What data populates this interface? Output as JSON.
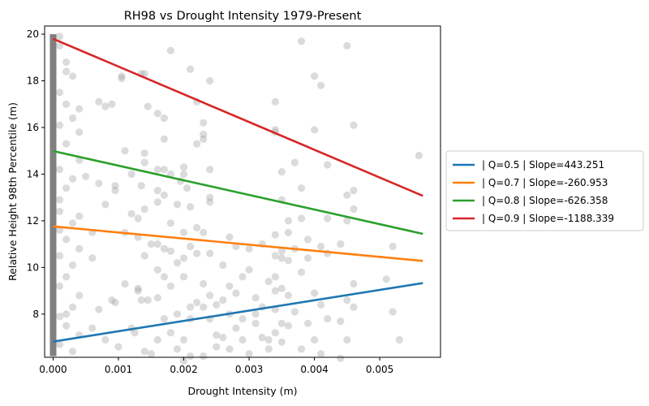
{
  "chart_data": {
    "type": "scatter",
    "title": "RH98 vs Drought Intensity 1979-Present",
    "xlabel": "Drought Intensity (m)",
    "ylabel": "Relative Height 98th Percentile (m)",
    "xlim": [
      -0.00013,
      0.00593
    ],
    "ylim": [
      6.15,
      20.35
    ],
    "xticks": [
      0.0,
      0.001,
      0.002,
      0.003,
      0.004,
      0.005
    ],
    "xtick_labels": [
      "0.000",
      "0.001",
      "0.002",
      "0.003",
      "0.004",
      "0.005"
    ],
    "yticks": [
      8,
      10,
      12,
      14,
      16,
      18,
      20
    ],
    "ytick_labels": [
      "8",
      "10",
      "12",
      "14",
      "16",
      "18",
      "20"
    ],
    "grid": false,
    "legend_position": "outside right",
    "scatter_color": "#a0a0a0",
    "zero_band": {
      "x": 0.0,
      "y_range": [
        6.2,
        20.0
      ],
      "color": "#808080"
    },
    "scatter_points": [
      [
        0.0001,
        19.9
      ],
      [
        0.0001,
        19.5
      ],
      [
        0.0002,
        18.8
      ],
      [
        0.0003,
        18.2
      ],
      [
        0.0001,
        17.5
      ],
      [
        0.0002,
        17.0
      ],
      [
        0.0004,
        16.8
      ],
      [
        0.0003,
        16.4
      ],
      [
        0.0001,
        16.1
      ],
      [
        0.0002,
        15.3
      ],
      [
        0.0004,
        14.6
      ],
      [
        0.0001,
        14.2
      ],
      [
        0.0003,
        13.8
      ],
      [
        0.0002,
        13.4
      ],
      [
        0.0001,
        12.9
      ],
      [
        0.0004,
        12.2
      ],
      [
        0.0003,
        11.9
      ],
      [
        0.0001,
        11.6
      ],
      [
        0.0002,
        11.2
      ],
      [
        0.0004,
        10.8
      ],
      [
        0.0001,
        10.5
      ],
      [
        0.0003,
        10.1
      ],
      [
        0.0002,
        9.6
      ],
      [
        0.0001,
        9.2
      ],
      [
        0.0004,
        8.8
      ],
      [
        0.0003,
        8.3
      ],
      [
        0.0001,
        7.9
      ],
      [
        0.0002,
        7.5
      ],
      [
        0.0004,
        7.1
      ],
      [
        0.0001,
        6.7
      ],
      [
        0.0003,
        6.4
      ],
      [
        0.0002,
        8.0
      ],
      [
        0.0001,
        12.4
      ],
      [
        0.0004,
        15.8
      ],
      [
        0.0002,
        18.4
      ],
      [
        0.0007,
        17.1
      ],
      [
        0.0008,
        16.9
      ],
      [
        0.0009,
        17.0
      ],
      [
        0.0007,
        13.6
      ],
      [
        0.0008,
        12.7
      ],
      [
        0.0006,
        10.4
      ],
      [
        0.0009,
        8.6
      ],
      [
        0.0006,
        7.4
      ],
      [
        0.0008,
        6.9
      ],
      [
        0.0007,
        8.2
      ],
      [
        0.0005,
        13.9
      ],
      [
        0.0006,
        11.5
      ],
      [
        0.00105,
        18.2
      ],
      [
        0.00105,
        18.1
      ],
      [
        0.0011,
        15.0
      ],
      [
        0.0012,
        14.0
      ],
      [
        0.0011,
        11.5
      ],
      [
        0.00095,
        13.5
      ],
      [
        0.00095,
        13.3
      ],
      [
        0.0012,
        12.3
      ],
      [
        0.0013,
        11.3
      ],
      [
        0.0011,
        9.3
      ],
      [
        0.00095,
        8.5
      ],
      [
        0.0012,
        7.4
      ],
      [
        0.0013,
        9.0
      ],
      [
        0.001,
        6.6
      ],
      [
        0.0014,
        6.4
      ],
      [
        0.00135,
        18.3
      ],
      [
        0.0014,
        18.3
      ],
      [
        0.00145,
        16.9
      ],
      [
        0.0014,
        14.9
      ],
      [
        0.0014,
        14.5
      ],
      [
        0.00135,
        13.5
      ],
      [
        0.0014,
        12.5
      ],
      [
        0.0013,
        12.1
      ],
      [
        0.0015,
        11.0
      ],
      [
        0.0014,
        10.5
      ],
      [
        0.00145,
        8.6
      ],
      [
        0.00135,
        8.6
      ],
      [
        0.00125,
        7.2
      ],
      [
        0.0015,
        6.3
      ],
      [
        0.0013,
        9.1
      ],
      [
        0.0016,
        16.6
      ],
      [
        0.0017,
        16.4
      ],
      [
        0.0017,
        15.5
      ],
      [
        0.0016,
        14.2
      ],
      [
        0.0017,
        14.2
      ],
      [
        0.0018,
        14.0
      ],
      [
        0.0016,
        13.3
      ],
      [
        0.0016,
        12.8
      ],
      [
        0.0019,
        12.7
      ],
      [
        0.0018,
        11.9
      ],
      [
        0.0016,
        11.0
      ],
      [
        0.0017,
        10.8
      ],
      [
        0.0018,
        10.7
      ],
      [
        0.0019,
        10.2
      ],
      [
        0.0016,
        9.9
      ],
      [
        0.0017,
        9.6
      ],
      [
        0.0018,
        9.2
      ],
      [
        0.0016,
        8.7
      ],
      [
        0.0019,
        8.0
      ],
      [
        0.0017,
        7.8
      ],
      [
        0.0018,
        7.2
      ],
      [
        0.0016,
        6.9
      ],
      [
        0.0019,
        6.5
      ],
      [
        0.0018,
        19.3
      ],
      [
        0.0017,
        13.1
      ],
      [
        0.002,
        14.3
      ],
      [
        0.002,
        14.0
      ],
      [
        0.0021,
        12.6
      ],
      [
        0.002,
        11.5
      ],
      [
        0.0021,
        10.9
      ],
      [
        0.002,
        10.4
      ],
      [
        0.002,
        9.6
      ],
      [
        0.0021,
        8.3
      ],
      [
        0.0021,
        7.8
      ],
      [
        0.002,
        6.9
      ],
      [
        0.0021,
        18.5
      ],
      [
        0.0022,
        17.1
      ],
      [
        0.0022,
        15.3
      ],
      [
        0.00195,
        13.7
      ],
      [
        0.00205,
        13.4
      ],
      [
        0.0022,
        11.7
      ],
      [
        0.0022,
        10.6
      ],
      [
        0.0021,
        6.2
      ],
      [
        0.002,
        6.0
      ],
      [
        0.0024,
        18.0
      ],
      [
        0.0023,
        16.2
      ],
      [
        0.0023,
        15.7
      ],
      [
        0.0023,
        15.5
      ],
      [
        0.0024,
        14.2
      ],
      [
        0.0024,
        13.0
      ],
      [
        0.0024,
        12.8
      ],
      [
        0.0023,
        11.5
      ],
      [
        0.0024,
        10.6
      ],
      [
        0.0023,
        9.3
      ],
      [
        0.0024,
        8.8
      ],
      [
        0.0023,
        8.3
      ],
      [
        0.0025,
        8.4
      ],
      [
        0.0024,
        7.8
      ],
      [
        0.0025,
        7.1
      ],
      [
        0.0025,
        6.6
      ],
      [
        0.0023,
        6.2
      ],
      [
        0.0022,
        8.5
      ],
      [
        0.0027,
        11.3
      ],
      [
        0.0026,
        10.1
      ],
      [
        0.0028,
        10.9
      ],
      [
        0.0027,
        9.2
      ],
      [
        0.0026,
        8.6
      ],
      [
        0.0028,
        8.9
      ],
      [
        0.0027,
        8.0
      ],
      [
        0.0029,
        7.8
      ],
      [
        0.0028,
        7.4
      ],
      [
        0.0026,
        7.0
      ],
      [
        0.0027,
        6.5
      ],
      [
        0.0029,
        6.9
      ],
      [
        0.003,
        6.3
      ],
      [
        0.0029,
        9.6
      ],
      [
        0.003,
        9.9
      ],
      [
        0.0031,
        8.7
      ],
      [
        0.0032,
        8.3
      ],
      [
        0.0031,
        7.6
      ],
      [
        0.0032,
        7.0
      ],
      [
        0.0033,
        6.5
      ],
      [
        0.003,
        10.8
      ],
      [
        0.0032,
        11.0
      ],
      [
        0.0031,
        8.0
      ],
      [
        0.0033,
        9.4
      ],
      [
        0.0033,
        6.9
      ],
      [
        0.0034,
        17.1
      ],
      [
        0.0034,
        15.9
      ],
      [
        0.0034,
        15.8
      ],
      [
        0.0035,
        14.1
      ],
      [
        0.0035,
        12.9
      ],
      [
        0.0036,
        11.5
      ],
      [
        0.0034,
        11.4
      ],
      [
        0.0035,
        10.7
      ],
      [
        0.0034,
        10.5
      ],
      [
        0.0035,
        10.4
      ],
      [
        0.0036,
        10.3
      ],
      [
        0.0034,
        9.6
      ],
      [
        0.0035,
        9.1
      ],
      [
        0.0034,
        9.0
      ],
      [
        0.0036,
        8.8
      ],
      [
        0.0035,
        7.6
      ],
      [
        0.0034,
        7.2
      ],
      [
        0.0035,
        6.8
      ],
      [
        0.0036,
        7.5
      ],
      [
        0.0034,
        8.2
      ],
      [
        0.0038,
        19.7
      ],
      [
        0.0037,
        14.5
      ],
      [
        0.0038,
        13.4
      ],
      [
        0.0038,
        12.1
      ],
      [
        0.0037,
        10.8
      ],
      [
        0.0039,
        10.4
      ],
      [
        0.0038,
        9.8
      ],
      [
        0.0037,
        8.1
      ],
      [
        0.0039,
        7.6
      ],
      [
        0.0038,
        6.5
      ],
      [
        0.0039,
        11.2
      ],
      [
        0.0036,
        12.0
      ],
      [
        0.004,
        18.2
      ],
      [
        0.0041,
        17.8
      ],
      [
        0.004,
        15.9
      ],
      [
        0.0042,
        14.4
      ],
      [
        0.0042,
        12.1
      ],
      [
        0.0041,
        10.9
      ],
      [
        0.0042,
        10.6
      ],
      [
        0.004,
        8.9
      ],
      [
        0.0041,
        8.4
      ],
      [
        0.0042,
        7.8
      ],
      [
        0.004,
        6.9
      ],
      [
        0.0041,
        6.3
      ],
      [
        0.0045,
        19.5
      ],
      [
        0.0046,
        16.1
      ],
      [
        0.0046,
        13.3
      ],
      [
        0.0045,
        13.1
      ],
      [
        0.0046,
        12.5
      ],
      [
        0.0045,
        12.0
      ],
      [
        0.0044,
        11.0
      ],
      [
        0.0046,
        9.3
      ],
      [
        0.0045,
        8.6
      ],
      [
        0.0046,
        8.3
      ],
      [
        0.0044,
        7.7
      ],
      [
        0.0045,
        6.9
      ],
      [
        0.0044,
        6.1
      ],
      [
        0.0052,
        10.9
      ],
      [
        0.0052,
        8.1
      ],
      [
        0.0053,
        6.9
      ],
      [
        0.0056,
        14.8
      ],
      [
        0.0051,
        9.5
      ]
    ],
    "series": [
      {
        "name": " | Q=0.5 | Slope=443.251",
        "color": "#1f77b4",
        "x": [
          0.0,
          0.00566
        ],
        "y": [
          6.82,
          9.33
        ]
      },
      {
        "name": " | Q=0.7 | Slope=-260.953",
        "color": "#ff7f0e",
        "x": [
          0.0,
          0.00566
        ],
        "y": [
          11.76,
          10.28
        ]
      },
      {
        "name": " | Q=0.8 | Slope=-626.358",
        "color": "#2ca02c",
        "x": [
          0.0,
          0.00566
        ],
        "y": [
          14.99,
          11.44
        ]
      },
      {
        "name": " | Q=0.9 | Slope=-1188.339",
        "color": "#d62728",
        "x": [
          0.0,
          0.00566
        ],
        "y": [
          19.8,
          13.07
        ]
      }
    ]
  }
}
